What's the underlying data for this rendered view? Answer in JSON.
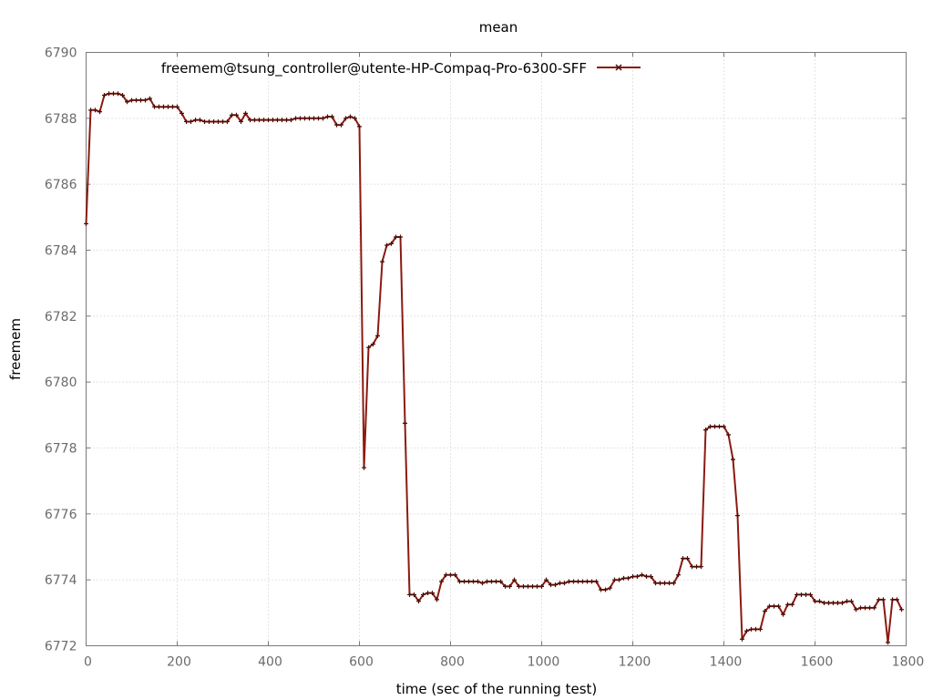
{
  "chart_data": {
    "type": "line",
    "title": "mean",
    "xlabel": "time (sec of the running test)",
    "ylabel": "freemem",
    "xlim": [
      0,
      1800
    ],
    "ylim": [
      6772,
      6790
    ],
    "xticks": [
      0,
      200,
      400,
      600,
      800,
      1000,
      1200,
      1400,
      1600,
      1800
    ],
    "yticks": [
      6772,
      6774,
      6776,
      6778,
      6780,
      6782,
      6784,
      6786,
      6788,
      6790
    ],
    "grid": true,
    "legend_position": "top-center",
    "series": [
      {
        "name": "freemem@tsung_controller@utente-HP-Compaq-Pro-6300-SFF",
        "color": "#8b1a10",
        "marker": "plus",
        "x": [
          0,
          10,
          20,
          30,
          40,
          50,
          60,
          70,
          80,
          90,
          100,
          110,
          120,
          130,
          140,
          150,
          160,
          170,
          180,
          190,
          200,
          210,
          220,
          230,
          240,
          250,
          260,
          270,
          280,
          290,
          300,
          310,
          320,
          330,
          340,
          350,
          360,
          370,
          380,
          390,
          400,
          410,
          420,
          430,
          440,
          450,
          460,
          470,
          480,
          490,
          500,
          510,
          520,
          530,
          540,
          550,
          560,
          570,
          580,
          590,
          600,
          610,
          620,
          630,
          640,
          650,
          660,
          670,
          680,
          690,
          700,
          710,
          720,
          730,
          740,
          750,
          760,
          770,
          780,
          790,
          800,
          810,
          820,
          830,
          840,
          850,
          860,
          870,
          880,
          890,
          900,
          910,
          920,
          930,
          940,
          950,
          960,
          970,
          980,
          990,
          1000,
          1010,
          1020,
          1030,
          1040,
          1050,
          1060,
          1070,
          1080,
          1090,
          1100,
          1110,
          1120,
          1130,
          1140,
          1150,
          1160,
          1170,
          1180,
          1190,
          1200,
          1210,
          1220,
          1230,
          1240,
          1250,
          1260,
          1270,
          1280,
          1290,
          1300,
          1310,
          1320,
          1330,
          1340,
          1350,
          1360,
          1370,
          1380,
          1390,
          1400,
          1410,
          1420,
          1430,
          1440,
          1450,
          1460,
          1470,
          1480,
          1490,
          1500,
          1510,
          1520,
          1530,
          1540,
          1550,
          1560,
          1570,
          1580,
          1590,
          1600,
          1610,
          1620,
          1630,
          1640,
          1650,
          1660,
          1670,
          1680,
          1690,
          1700,
          1710,
          1720,
          1730,
          1740,
          1750,
          1760,
          1770,
          1780,
          1790
        ],
        "y": [
          6784.8,
          6788.25,
          6788.25,
          6788.2,
          6788.7,
          6788.75,
          6788.75,
          6788.75,
          6788.7,
          6788.5,
          6788.55,
          6788.55,
          6788.55,
          6788.55,
          6788.6,
          6788.35,
          6788.35,
          6788.35,
          6788.35,
          6788.35,
          6788.35,
          6788.15,
          6787.9,
          6787.9,
          6787.95,
          6787.95,
          6787.9,
          6787.9,
          6787.9,
          6787.9,
          6787.9,
          6787.9,
          6788.1,
          6788.1,
          6787.9,
          6788.15,
          6787.95,
          6787.95,
          6787.95,
          6787.95,
          6787.95,
          6787.95,
          6787.95,
          6787.95,
          6787.95,
          6787.95,
          6788.0,
          6788.0,
          6788.0,
          6788.0,
          6788.0,
          6788.0,
          6788.0,
          6788.05,
          6788.05,
          6787.8,
          6787.8,
          6788.0,
          6788.05,
          6788.0,
          6787.75,
          6777.4,
          6781.05,
          6781.15,
          6781.4,
          6783.65,
          6784.15,
          6784.2,
          6784.4,
          6784.4,
          6778.75,
          6773.55,
          6773.55,
          6773.35,
          6773.55,
          6773.6,
          6773.6,
          6773.4,
          6773.95,
          6774.15,
          6774.15,
          6774.15,
          6773.95,
          6773.95,
          6773.95,
          6773.95,
          6773.95,
          6773.9,
          6773.95,
          6773.95,
          6773.95,
          6773.95,
          6773.8,
          6773.8,
          6774.0,
          6773.8,
          6773.8,
          6773.8,
          6773.8,
          6773.8,
          6773.8,
          6774.0,
          6773.85,
          6773.85,
          6773.9,
          6773.9,
          6773.95,
          6773.95,
          6773.95,
          6773.95,
          6773.95,
          6773.95,
          6773.95,
          6773.7,
          6773.7,
          6773.75,
          6774.0,
          6774.0,
          6774.05,
          6774.05,
          6774.1,
          6774.1,
          6774.15,
          6774.1,
          6774.1,
          6773.9,
          6773.9,
          6773.9,
          6773.9,
          6773.9,
          6774.15,
          6774.65,
          6774.65,
          6774.4,
          6774.4,
          6774.4,
          6778.55,
          6778.65,
          6778.65,
          6778.65,
          6778.65,
          6778.4,
          6777.65,
          6775.95,
          6772.2,
          6772.45,
          6772.5,
          6772.5,
          6772.5,
          6773.05,
          6773.2,
          6773.2,
          6773.2,
          6772.95,
          6773.25,
          6773.25,
          6773.55,
          6773.55,
          6773.55,
          6773.55,
          6773.35,
          6773.35,
          6773.3,
          6773.3,
          6773.3,
          6773.3,
          6773.3,
          6773.35,
          6773.35,
          6773.1,
          6773.15,
          6773.15,
          6773.15,
          6773.15,
          6773.4,
          6773.4,
          6772.1,
          6773.4,
          6773.4,
          6773.1
        ]
      }
    ]
  }
}
